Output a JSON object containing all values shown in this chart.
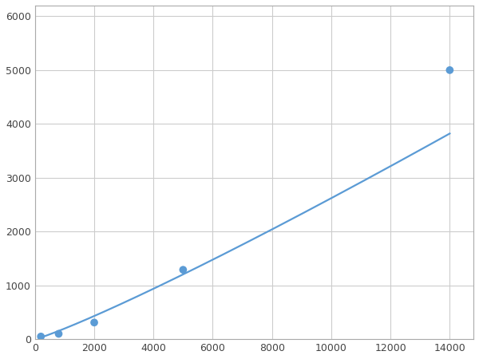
{
  "x": [
    200,
    800,
    2000,
    5000,
    14000
  ],
  "y": [
    50,
    100,
    310,
    1290,
    5000
  ],
  "line_color": "#5B9BD5",
  "marker_color": "#5B9BD5",
  "marker_size": 7,
  "line_width": 1.6,
  "xlim": [
    0,
    14800
  ],
  "ylim": [
    0,
    6200
  ],
  "xticks": [
    0,
    2000,
    4000,
    6000,
    8000,
    10000,
    12000,
    14000
  ],
  "yticks": [
    0,
    1000,
    2000,
    3000,
    4000,
    5000,
    6000
  ],
  "grid_color": "#CCCCCC",
  "grid_linewidth": 0.8,
  "bg_color": "#FFFFFF",
  "fig_bg_color": "#FFFFFF",
  "spine_color": "#AAAAAA"
}
